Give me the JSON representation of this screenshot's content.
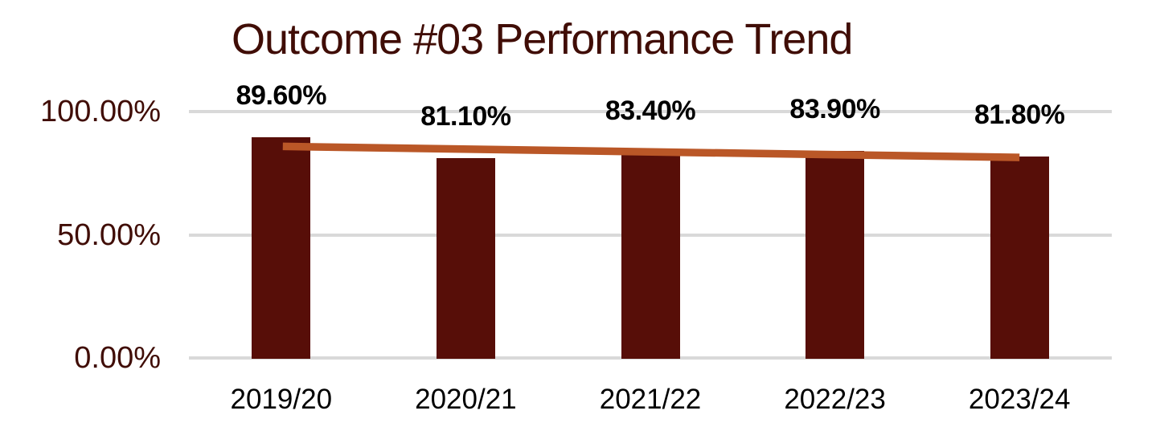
{
  "chart_data": {
    "type": "bar",
    "title": "Outcome #03 Performance Trend",
    "categories": [
      "2019/20",
      "2020/21",
      "2021/22",
      "2022/23",
      "2023/24"
    ],
    "series": [
      {
        "name": "Outcome #03 performance",
        "type": "column",
        "values": [
          89.6,
          81.1,
          83.4,
          83.9,
          81.8
        ],
        "color": "#570E08"
      }
    ],
    "data_labels": [
      "89.60%",
      "81.10%",
      "83.40%",
      "83.90%",
      "81.80%"
    ],
    "trendline": {
      "type": "linear",
      "color": "#BA5727"
    },
    "y_axis": {
      "tick_labels": [
        "100.00%",
        "50.00%",
        "0.00%"
      ],
      "tick_values": [
        100,
        50,
        0
      ],
      "range": [
        0,
        100
      ],
      "label_color": "#400D06"
    },
    "x_axis": {
      "label_color": "#000000"
    },
    "grid": {
      "show": true,
      "color": "#D9D9D9"
    },
    "title_color": "#400D06",
    "legend": "none",
    "background": "#FFFFFF"
  }
}
